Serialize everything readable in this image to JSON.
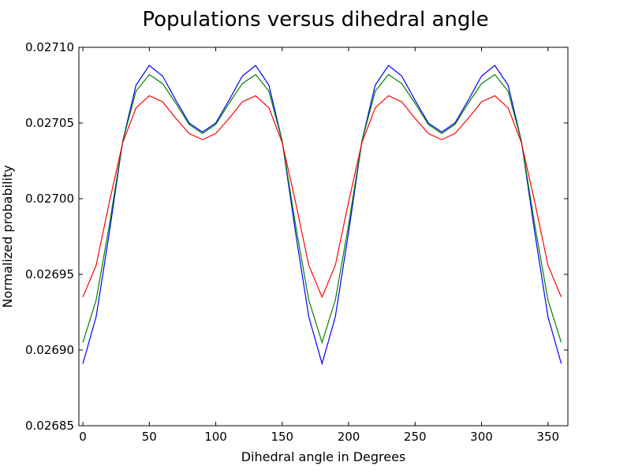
{
  "chart_data": {
    "type": "line",
    "title": "Populations versus dihedral angle",
    "xlabel": "Dihedral angle in Degrees",
    "ylabel": "Normalized probability",
    "xlim": [
      -3,
      365
    ],
    "ylim": [
      0.02685,
      0.0271
    ],
    "x_ticks": [
      0,
      50,
      100,
      150,
      200,
      250,
      300,
      350
    ],
    "x_tick_labels": [
      "0",
      "50",
      "100",
      "150",
      "200",
      "250",
      "300",
      "350"
    ],
    "y_ticks": [
      0.02685,
      0.0269,
      0.02695,
      0.027,
      0.02705,
      0.0271
    ],
    "y_tick_labels": [
      "0.02685",
      "0.02690",
      "0.02695",
      "0.02700",
      "0.02705",
      "0.02710"
    ],
    "grid": false,
    "x": [
      0,
      10,
      20,
      30,
      40,
      50,
      60,
      70,
      80,
      90,
      100,
      110,
      120,
      130,
      140,
      150,
      160,
      170,
      180,
      190,
      200,
      210,
      220,
      230,
      240,
      250,
      260,
      270,
      280,
      290,
      300,
      310,
      320,
      330,
      340,
      350,
      360
    ],
    "series": [
      {
        "color": "#0000ff",
        "values": [
          0.026891,
          0.026922,
          0.026978,
          0.027038,
          0.027075,
          0.027088,
          0.027081,
          0.027065,
          0.02705,
          0.027044,
          0.02705,
          0.027065,
          0.027081,
          0.027088,
          0.027075,
          0.027038,
          0.026978,
          0.026922,
          0.026891,
          0.026922,
          0.026978,
          0.027038,
          0.027075,
          0.027088,
          0.027081,
          0.027065,
          0.02705,
          0.027044,
          0.02705,
          0.027065,
          0.027081,
          0.027088,
          0.027075,
          0.027038,
          0.026978,
          0.026922,
          0.026891
        ]
      },
      {
        "color": "#008000",
        "values": [
          0.026905,
          0.026933,
          0.026983,
          0.027038,
          0.027071,
          0.027082,
          0.027076,
          0.027063,
          0.027049,
          0.027043,
          0.027049,
          0.027063,
          0.027076,
          0.027082,
          0.027071,
          0.027038,
          0.026983,
          0.026933,
          0.026905,
          0.026933,
          0.026983,
          0.027038,
          0.027071,
          0.027082,
          0.027076,
          0.027063,
          0.027049,
          0.027043,
          0.027049,
          0.027063,
          0.027076,
          0.027082,
          0.027071,
          0.027038,
          0.026983,
          0.026933,
          0.026905
        ]
      },
      {
        "color": "#ff0000",
        "values": [
          0.026935,
          0.026956,
          0.026998,
          0.027037,
          0.02706,
          0.027068,
          0.027064,
          0.027053,
          0.027043,
          0.027039,
          0.027043,
          0.027053,
          0.027064,
          0.027068,
          0.02706,
          0.027037,
          0.026998,
          0.026956,
          0.026935,
          0.026956,
          0.026998,
          0.027037,
          0.02706,
          0.027068,
          0.027064,
          0.027053,
          0.027043,
          0.027039,
          0.027043,
          0.027053,
          0.027064,
          0.027068,
          0.02706,
          0.027037,
          0.026998,
          0.026956,
          0.026935
        ]
      }
    ]
  }
}
